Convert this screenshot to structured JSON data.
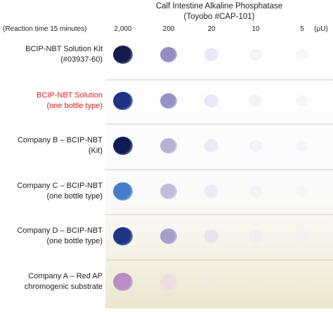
{
  "header": {
    "title_line1": "Calf Intestine Alkaline Phosphatase",
    "title_line2": "(Toyobo #CAP-101)",
    "reaction_time": "(Reaction time 15 minutes)",
    "columns": [
      "2,000",
      "200",
      "20",
      "10",
      "5"
    ],
    "unit": "(μU)"
  },
  "rows": [
    {
      "label_line1": "BCIP-NBT Solution Kit",
      "label_line2": "(#03937-60)",
      "highlight": false,
      "dots": [
        {
          "color": "#141b4e",
          "intensity": 1.0
        },
        {
          "color": "#7a72b4",
          "intensity": 0.6
        },
        {
          "color": "#dcdaee",
          "intensity": 0.2
        },
        {
          "color": "#ebeaf4",
          "intensity": 0.12
        },
        {
          "color": "#efeef6",
          "intensity": 0.08
        }
      ]
    },
    {
      "label_line1": "BCIP-NBT Solution",
      "label_line2": "(one bottle type)",
      "highlight": true,
      "dots": [
        {
          "color": "#1d3188",
          "intensity": 1.0
        },
        {
          "color": "#7c78bc",
          "intensity": 0.6
        },
        {
          "color": "#dcdaee",
          "intensity": 0.2
        },
        {
          "color": "#eae9f4",
          "intensity": 0.12
        },
        {
          "color": "#efeef6",
          "intensity": 0.08
        }
      ]
    },
    {
      "label_line1": "Company B – BCIP-NBT",
      "label_line2": "(Kit)",
      "highlight": false,
      "dots": [
        {
          "color": "#101a55",
          "intensity": 1.0
        },
        {
          "color": "#9e9ac8",
          "intensity": 0.5
        },
        {
          "color": "#e0dff0",
          "intensity": 0.18
        },
        {
          "color": "#ebeaf4",
          "intensity": 0.1
        },
        {
          "color": "#f0eff6",
          "intensity": 0.06
        }
      ]
    },
    {
      "label_line1": "Company C – BCIP-NBT",
      "label_line2": "(one bottle type)",
      "highlight": false,
      "dots": [
        {
          "color": "#3a76c8",
          "intensity": 0.9
        },
        {
          "color": "#a8a6d2",
          "intensity": 0.45
        },
        {
          "color": "#e2e1f0",
          "intensity": 0.16
        },
        {
          "color": "#ecebf4",
          "intensity": 0.1
        },
        {
          "color": "#f1f0f6",
          "intensity": 0.06
        }
      ]
    },
    {
      "label_line1": "Company D – BCIP-NBT",
      "label_line2": "(one bottle type)",
      "highlight": false,
      "dots": [
        {
          "color": "#1a3585",
          "intensity": 1.0
        },
        {
          "color": "#8e86c2",
          "intensity": 0.55
        },
        {
          "color": "#e0ddee",
          "intensity": 0.16
        },
        {
          "color": "#ecebf3",
          "intensity": 0.1
        },
        {
          "color": "#f1f0f4",
          "intensity": 0.06
        }
      ]
    },
    {
      "label_line1": "Company A – Red AP",
      "label_line2": "chromogenic substrate",
      "highlight": false,
      "dots": [
        {
          "color": "#b07cc0",
          "intensity": 0.7
        },
        {
          "color": "#ecd6e6",
          "intensity": 0.3
        },
        {
          "color": "#f1e9e6",
          "intensity": 0.08
        },
        {
          "color": "#efe9da",
          "intensity": 0.04
        },
        {
          "color": "#efe8d6",
          "intensity": 0.02
        }
      ]
    }
  ]
}
